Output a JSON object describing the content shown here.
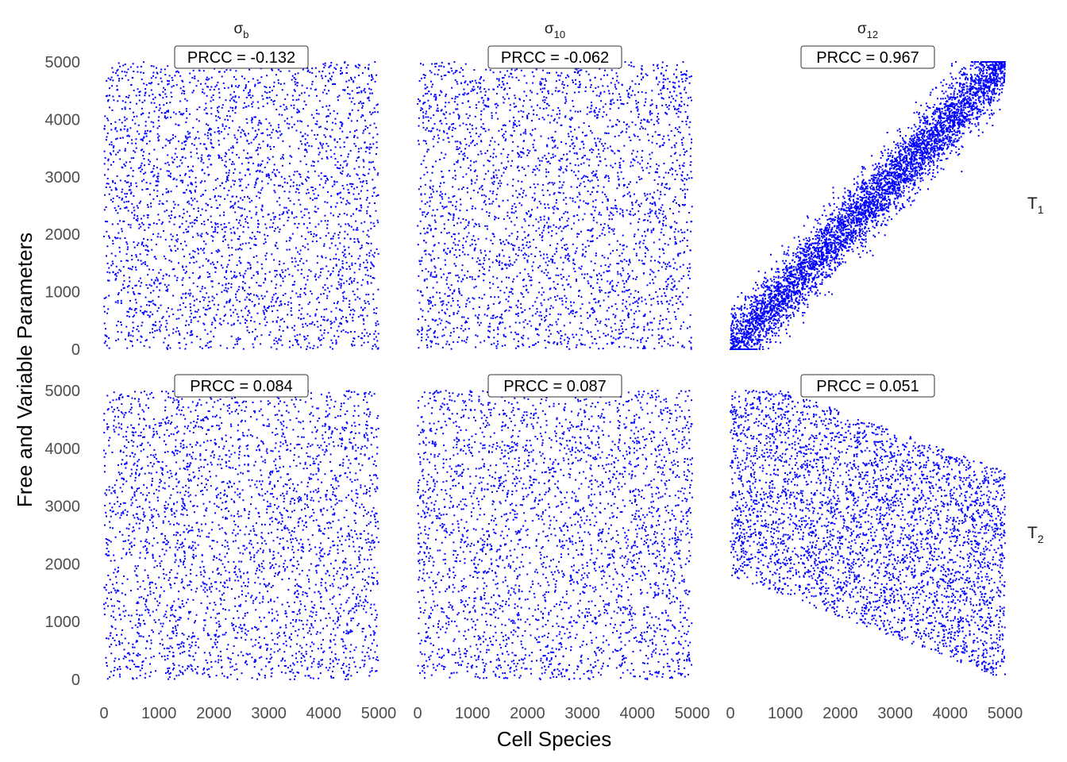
{
  "chart_data": {
    "type": "scatter",
    "xlabel": "Cell Species",
    "ylabel": "Free and Variable Parameters",
    "xlim": [
      0,
      5000
    ],
    "ylim": [
      0,
      5000
    ],
    "x_ticks": [
      "0",
      "1000",
      "2000",
      "3000",
      "4000",
      "5000"
    ],
    "y_ticks": [
      "0",
      "1000",
      "2000",
      "3000",
      "4000",
      "5000"
    ],
    "grid": false,
    "point_color": "#0000ff",
    "columns": [
      {
        "base": "σ",
        "sub": "b"
      },
      {
        "base": "σ",
        "sub": "10"
      },
      {
        "base": "σ",
        "sub": "12"
      }
    ],
    "rows": [
      {
        "base": "T",
        "sub": "1"
      },
      {
        "base": "T",
        "sub": "2"
      }
    ],
    "panels": [
      {
        "row": 0,
        "col": 0,
        "label": "PRCC = -0.132",
        "pattern": "uniform",
        "n_points": 3000,
        "seed": 11
      },
      {
        "row": 0,
        "col": 1,
        "label": "PRCC = -0.062",
        "pattern": "uniform",
        "n_points": 3000,
        "seed": 23
      },
      {
        "row": 0,
        "col": 2,
        "label": "PRCC = 0.967",
        "pattern": "diagonal",
        "n_points": 5000,
        "seed": 37
      },
      {
        "row": 1,
        "col": 0,
        "label": "PRCC = 0.084",
        "pattern": "uniform",
        "n_points": 3000,
        "seed": 41
      },
      {
        "row": 1,
        "col": 1,
        "label": "PRCC = 0.087",
        "pattern": "uniform",
        "n_points": 3000,
        "seed": 53
      },
      {
        "row": 1,
        "col": 2,
        "label": "PRCC = 0.051",
        "pattern": "decreasing-band",
        "n_points": 4000,
        "seed": 67
      }
    ]
  }
}
